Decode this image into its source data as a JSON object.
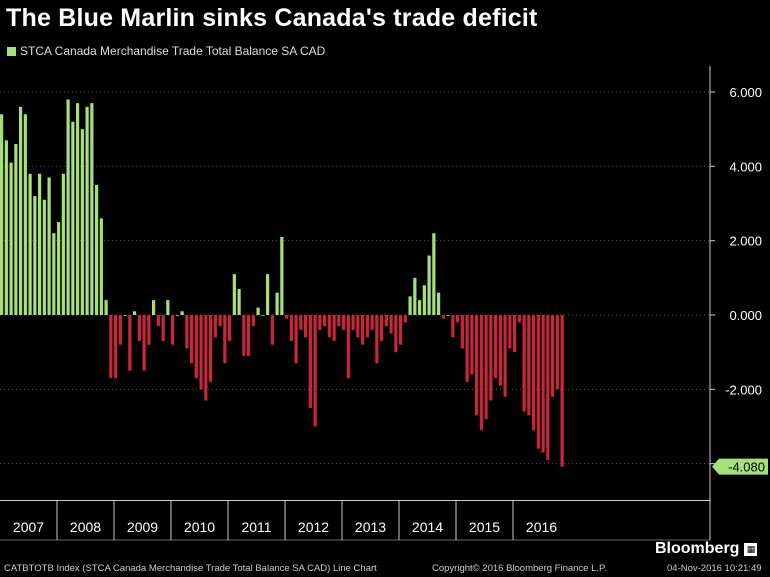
{
  "title": "The Blue Marlin sinks Canada's trade deficit",
  "legend": {
    "label": "STCA Canada Merchandise Trade Total Balance SA CAD",
    "color": "#a6e07a"
  },
  "colors": {
    "positive": "#a6e07a",
    "negative": "#c8263a",
    "background": "#000000",
    "marker": "#a6e07a"
  },
  "footer": {
    "source": "CATBTOTB Index (STCA Canada Merchandise Trade Total Balance SA CAD) Line Chart",
    "copyright": "Copyright© 2016 Bloomberg Finance L.P.",
    "date": "04-Nov-2016 10:21:49"
  },
  "brand": {
    "name": "Bloomberg",
    "icon": "bloomberg-terminal-icon"
  },
  "chart_data": {
    "type": "bar",
    "unit_note": "monthly, CAD billions",
    "x_labels": [
      "2007",
      "2008",
      "2009",
      "2010",
      "2011",
      "2012",
      "2013",
      "2014",
      "2015",
      "2016"
    ],
    "yticks": [
      "6.000",
      "4.000",
      "2.000",
      "0.000",
      "-2.000",
      "-4.000"
    ],
    "ytick_values": [
      6,
      4,
      2,
      0,
      -2,
      -4
    ],
    "ylim": [
      -4.7,
      6.6
    ],
    "last_value_label": "-4.080",
    "last_value": -4.08,
    "values": [
      5.4,
      4.7,
      4.1,
      4.6,
      5.6,
      5.4,
      3.8,
      3.2,
      3.8,
      3.1,
      3.7,
      2.2,
      2.5,
      3.8,
      5.8,
      5.2,
      5.7,
      5.0,
      5.6,
      5.7,
      3.5,
      2.6,
      0.4,
      -1.7,
      -1.7,
      -0.8,
      0.0,
      -1.5,
      0.1,
      -0.7,
      -1.5,
      -0.8,
      0.4,
      -0.3,
      -0.7,
      0.4,
      -0.8,
      0.0,
      0.1,
      -0.9,
      -1.3,
      -1.7,
      -2.0,
      -2.3,
      -1.8,
      -0.6,
      -0.3,
      -1.3,
      -0.7,
      1.1,
      0.7,
      -1.1,
      -1.1,
      -0.3,
      0.2,
      0.0,
      1.1,
      -0.8,
      0.6,
      2.1,
      -0.1,
      -0.7,
      -1.3,
      -0.4,
      -0.6,
      -2.5,
      -3.0,
      -0.4,
      -0.3,
      -0.6,
      -0.7,
      -0.3,
      -0.4,
      -1.7,
      -0.4,
      -0.6,
      -0.8,
      -0.6,
      -0.4,
      -1.3,
      -0.7,
      -0.3,
      -0.5,
      -1.0,
      -0.8,
      -0.2,
      0.5,
      1.0,
      0.4,
      0.8,
      1.6,
      2.2,
      0.6,
      -0.1,
      0.0,
      -0.6,
      -0.2,
      -0.9,
      -1.8,
      -1.6,
      -2.7,
      -3.1,
      -2.8,
      -2.3,
      -1.7,
      -1.9,
      -2.2,
      -0.9,
      -1.0,
      -0.2,
      -2.6,
      -2.7,
      -3.1,
      -3.6,
      -3.7,
      -3.9,
      -2.2,
      -2.0,
      -4.08
    ]
  }
}
